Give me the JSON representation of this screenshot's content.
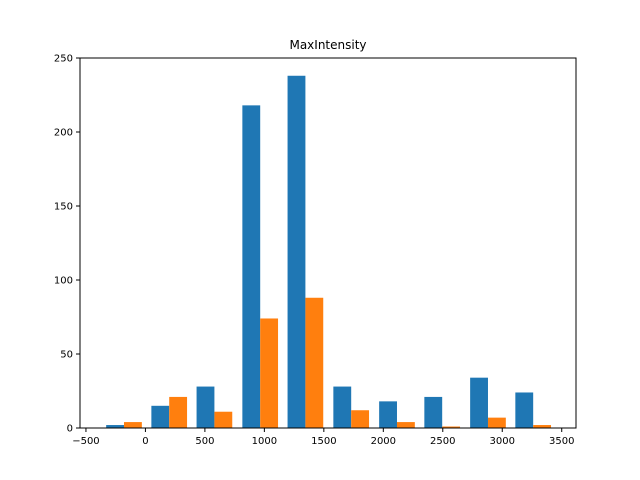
{
  "chart_data": {
    "type": "bar",
    "title": "MaxIntensity",
    "xlabel": "",
    "ylabel": "",
    "xlim": [
      -550,
      3620
    ],
    "ylim": [
      0,
      250
    ],
    "xticks": [
      -500,
      0,
      500,
      1000,
      1500,
      2000,
      2500,
      3000,
      3500
    ],
    "yticks": [
      0,
      50,
      100,
      150,
      200,
      250
    ],
    "bin_centers": [
      -180,
      200,
      580,
      965,
      1345,
      1730,
      2115,
      2495,
      2880,
      3260
    ],
    "bar_width": 150,
    "series": [
      {
        "color": "#1f77b4",
        "offset": -75,
        "values": [
          2,
          15,
          28,
          218,
          238,
          28,
          18,
          21,
          34,
          24
        ]
      },
      {
        "color": "#ff7f0e",
        "offset": 75,
        "values": [
          4,
          21,
          11,
          74,
          88,
          12,
          4,
          1,
          7,
          2
        ]
      }
    ],
    "grid": false,
    "legend": "none"
  }
}
